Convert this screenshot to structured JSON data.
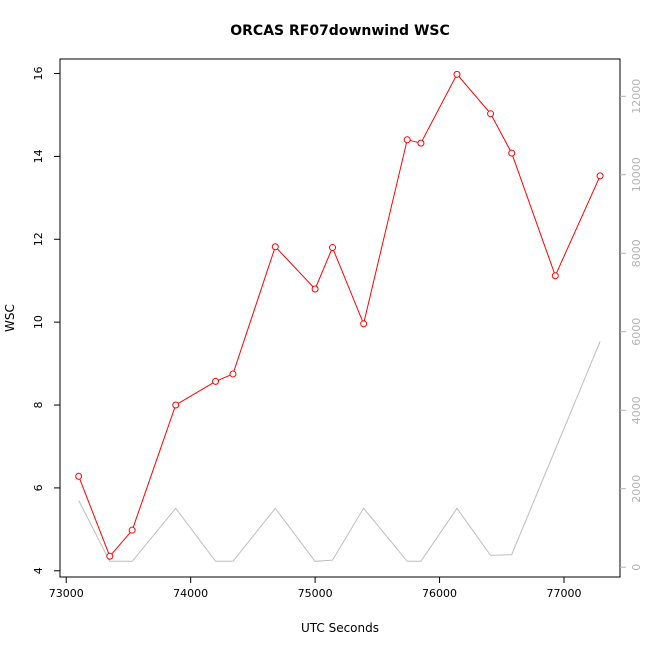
{
  "chart_data": {
    "type": "line",
    "title": "ORCAS RF07downwind WSC",
    "xlabel": "UTC Seconds",
    "ylabel": "WSC",
    "xlim": [
      72950,
      77450
    ],
    "ylim": [
      3.85,
      16.35
    ],
    "y2lim": [
      -250,
      12950
    ],
    "x_ticks": [
      73000,
      74000,
      75000,
      76000,
      77000
    ],
    "y_ticks": [
      4,
      6,
      8,
      10,
      12,
      14,
      16
    ],
    "y2_ticks": [
      0,
      2000,
      4000,
      6000,
      8000,
      10000,
      12000
    ],
    "series": [
      {
        "axis": "left",
        "color": "#ff0000",
        "marker": "open-circle",
        "points": [
          [
            73100,
            6.28
          ],
          [
            73350,
            4.35
          ],
          [
            73530,
            4.98
          ],
          [
            73880,
            8.0
          ],
          [
            74200,
            8.57
          ],
          [
            74340,
            8.75
          ],
          [
            74680,
            11.82
          ],
          [
            75000,
            10.8
          ],
          [
            75140,
            11.8
          ],
          [
            75390,
            9.96
          ],
          [
            75740,
            14.4
          ],
          [
            75850,
            14.32
          ],
          [
            76140,
            15.98
          ],
          [
            76410,
            15.03
          ],
          [
            76580,
            14.08
          ],
          [
            76930,
            11.12
          ],
          [
            77290,
            13.53
          ]
        ]
      },
      {
        "axis": "right",
        "color": "#bebebe",
        "marker": "none",
        "points": [
          [
            73100,
            1700
          ],
          [
            73350,
            150
          ],
          [
            73530,
            150
          ],
          [
            73880,
            1500
          ],
          [
            74200,
            150
          ],
          [
            74340,
            150
          ],
          [
            74680,
            1500
          ],
          [
            75000,
            150
          ],
          [
            75140,
            180
          ],
          [
            75390,
            1500
          ],
          [
            75740,
            150
          ],
          [
            75850,
            150
          ],
          [
            76140,
            1500
          ],
          [
            76410,
            300
          ],
          [
            76580,
            320
          ],
          [
            76930,
            3000
          ],
          [
            77290,
            5750
          ]
        ]
      }
    ]
  }
}
